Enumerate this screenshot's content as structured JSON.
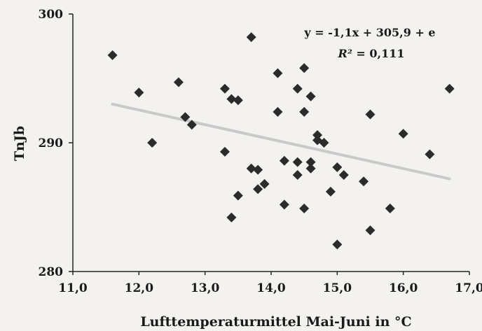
{
  "chart_data": {
    "type": "scatter",
    "title": "",
    "xlabel": "Lufttemperaturmittel Mai-Juni in °C",
    "ylabel": "TnJb",
    "xlim": [
      11.0,
      17.0
    ],
    "ylim": [
      280,
      300
    ],
    "x_ticks": [
      "11,0",
      "12,0",
      "13,0",
      "14,0",
      "15,0",
      "16,0",
      "17,0"
    ],
    "y_ticks": [
      "280",
      "290",
      "300"
    ],
    "grid": false,
    "legend": "none",
    "marker_color": "#2b2b2b",
    "trendline_color": "#c9c9c9",
    "points": [
      {
        "x": 11.6,
        "y": 296.8
      },
      {
        "x": 12.0,
        "y": 293.9
      },
      {
        "x": 12.2,
        "y": 290.0
      },
      {
        "x": 12.6,
        "y": 294.7
      },
      {
        "x": 12.7,
        "y": 292.0
      },
      {
        "x": 12.8,
        "y": 291.4
      },
      {
        "x": 13.3,
        "y": 294.2
      },
      {
        "x": 13.3,
        "y": 289.3
      },
      {
        "x": 13.4,
        "y": 293.4
      },
      {
        "x": 13.5,
        "y": 293.3
      },
      {
        "x": 13.4,
        "y": 284.2
      },
      {
        "x": 13.5,
        "y": 285.9
      },
      {
        "x": 13.7,
        "y": 298.2
      },
      {
        "x": 13.7,
        "y": 288.0
      },
      {
        "x": 13.8,
        "y": 287.9
      },
      {
        "x": 13.8,
        "y": 286.4
      },
      {
        "x": 13.9,
        "y": 286.8
      },
      {
        "x": 14.1,
        "y": 295.4
      },
      {
        "x": 14.1,
        "y": 292.4
      },
      {
        "x": 14.2,
        "y": 288.6
      },
      {
        "x": 14.2,
        "y": 285.2
      },
      {
        "x": 14.4,
        "y": 294.2
      },
      {
        "x": 14.4,
        "y": 288.5
      },
      {
        "x": 14.4,
        "y": 287.5
      },
      {
        "x": 14.5,
        "y": 295.8
      },
      {
        "x": 14.5,
        "y": 292.4
      },
      {
        "x": 14.5,
        "y": 284.9
      },
      {
        "x": 14.6,
        "y": 293.6
      },
      {
        "x": 14.6,
        "y": 288.5
      },
      {
        "x": 14.6,
        "y": 288.0
      },
      {
        "x": 14.7,
        "y": 290.6
      },
      {
        "x": 14.7,
        "y": 290.2
      },
      {
        "x": 14.8,
        "y": 290.0
      },
      {
        "x": 14.9,
        "y": 286.2
      },
      {
        "x": 15.0,
        "y": 288.1
      },
      {
        "x": 15.0,
        "y": 282.1
      },
      {
        "x": 15.1,
        "y": 287.5
      },
      {
        "x": 15.4,
        "y": 287.0
      },
      {
        "x": 15.5,
        "y": 292.2
      },
      {
        "x": 15.5,
        "y": 283.2
      },
      {
        "x": 15.8,
        "y": 284.9
      },
      {
        "x": 16.0,
        "y": 290.7
      },
      {
        "x": 16.4,
        "y": 289.1
      },
      {
        "x": 16.7,
        "y": 294.2
      }
    ],
    "trendline": {
      "x": [
        11.6,
        16.7
      ],
      "y": [
        293.0,
        287.2
      ]
    },
    "annotations": {
      "equation": "y = -1,1x + 305,9 + e",
      "r2_symbol": "R²",
      "r2_value": " = 0,111"
    }
  }
}
